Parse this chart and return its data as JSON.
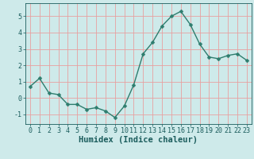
{
  "x": [
    0,
    1,
    2,
    3,
    4,
    5,
    6,
    7,
    8,
    9,
    10,
    11,
    12,
    13,
    14,
    15,
    16,
    17,
    18,
    19,
    20,
    21,
    22,
    23
  ],
  "y": [
    0.7,
    1.2,
    0.3,
    0.2,
    -0.4,
    -0.4,
    -0.7,
    -0.6,
    -0.8,
    -1.2,
    -0.5,
    0.8,
    2.7,
    3.4,
    4.4,
    5.0,
    5.3,
    4.5,
    3.3,
    2.5,
    2.4,
    2.6,
    2.7,
    2.3
  ],
  "line_color": "#2e7d6e",
  "marker": "D",
  "marker_size": 2.5,
  "bg_color": "#ceeaea",
  "grid_color": "#e8a0a0",
  "xlabel": "Humidex (Indice chaleur)",
  "tick_color": "#1a5c5c",
  "xlim": [
    -0.5,
    23.5
  ],
  "ylim": [
    -1.6,
    5.8
  ],
  "yticks": [
    -1,
    0,
    1,
    2,
    3,
    4,
    5
  ],
  "xticks": [
    0,
    1,
    2,
    3,
    4,
    5,
    6,
    7,
    8,
    9,
    10,
    11,
    12,
    13,
    14,
    15,
    16,
    17,
    18,
    19,
    20,
    21,
    22,
    23
  ],
  "xlabel_fontsize": 7.5,
  "tick_fontsize": 6.0,
  "linewidth": 1.0
}
